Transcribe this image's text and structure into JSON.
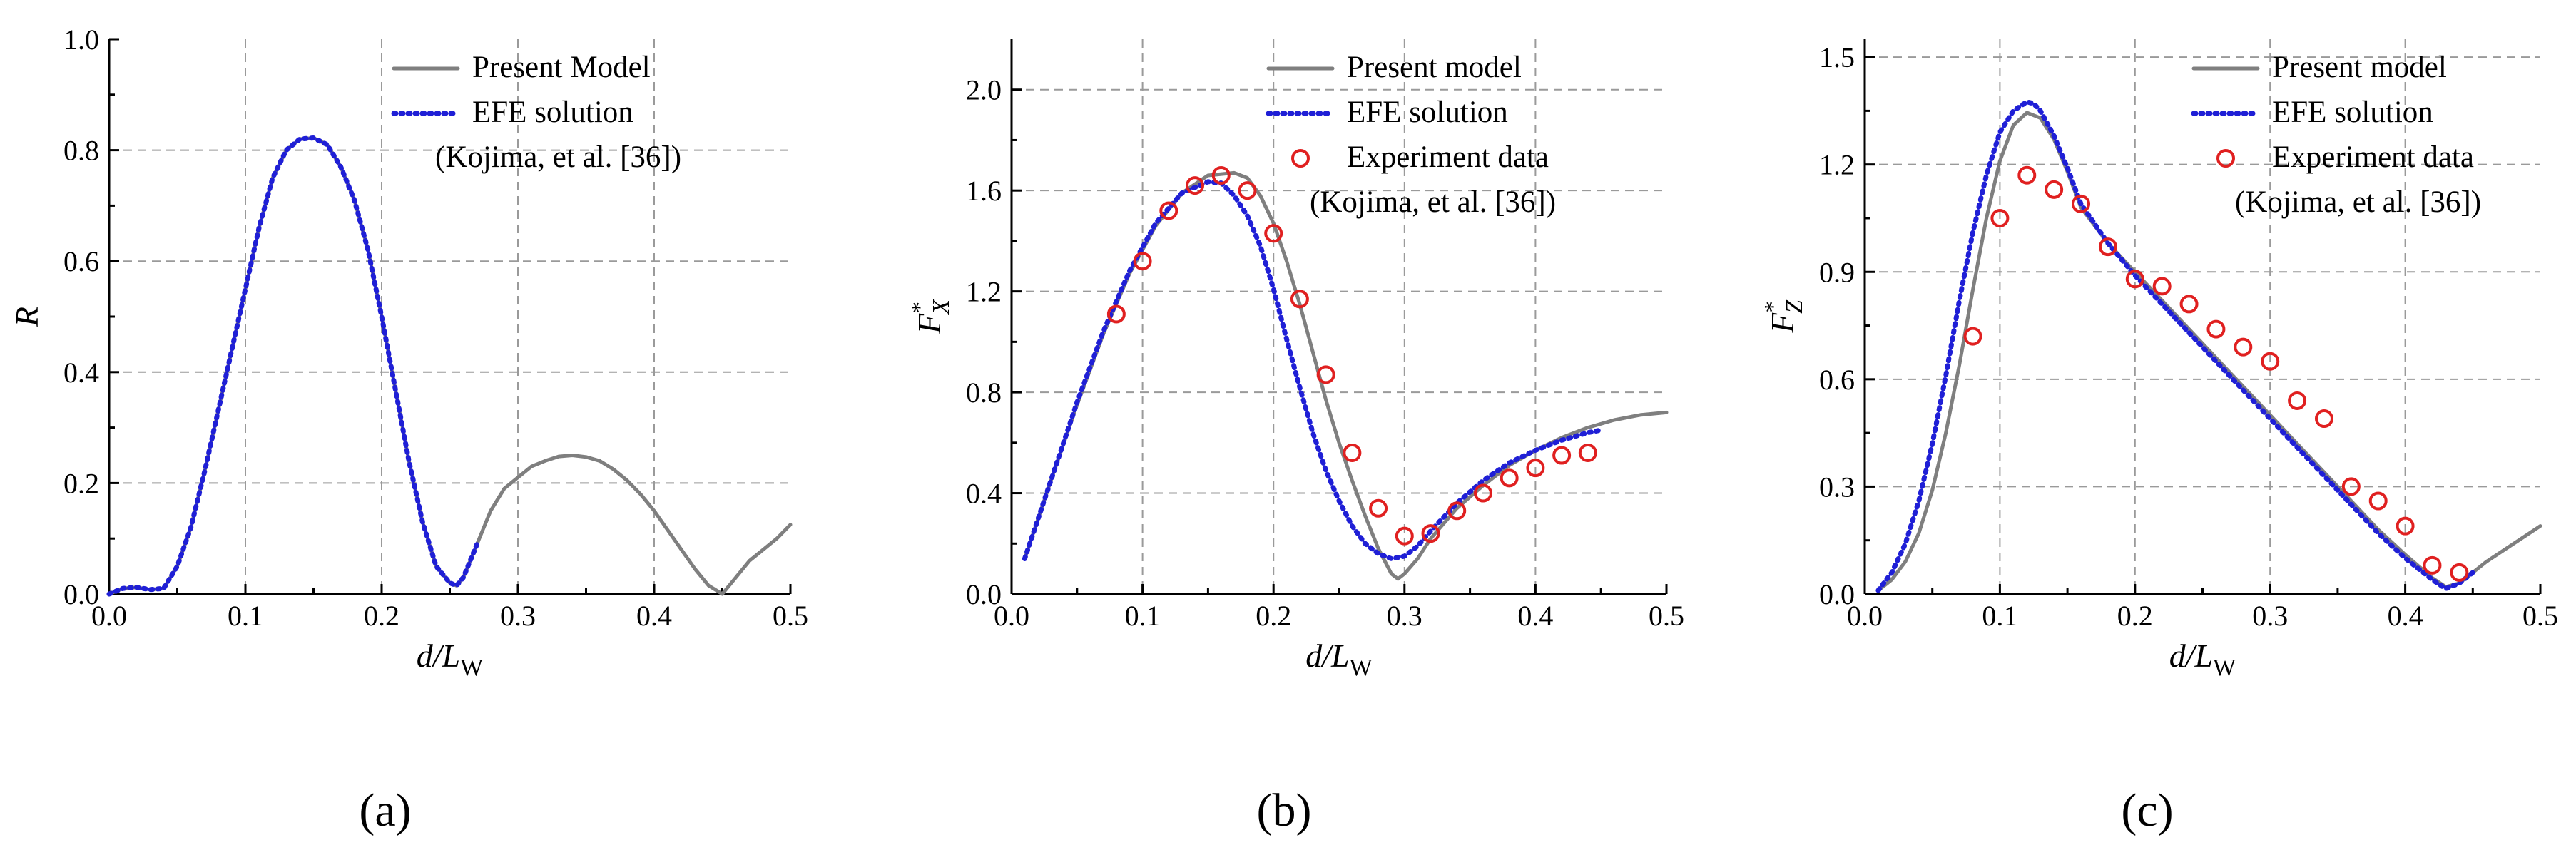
{
  "chart_data": [
    {
      "id": "a",
      "type": "line",
      "panel_label": "(a)",
      "xlabel": {
        "main": "d/L",
        "sub": "W"
      },
      "ylabel": {
        "main": "R",
        "sup": "",
        "sub": ""
      },
      "xlim": [
        0.0,
        0.5
      ],
      "ylim": [
        0.0,
        1.0
      ],
      "xticks": [
        0.0,
        0.1,
        0.2,
        0.3,
        0.4,
        0.5
      ],
      "yticks": [
        0.0,
        0.2,
        0.4,
        0.6,
        0.8,
        1.0
      ],
      "xtick_labels": [
        "0.0",
        "0.1",
        "0.2",
        "0.3",
        "0.4",
        "0.5"
      ],
      "ytick_labels": [
        "0.0",
        "0.2",
        "0.4",
        "0.6",
        "0.8",
        "1.0"
      ],
      "grid": true,
      "legend_position": "top-right",
      "legend": [
        {
          "label": "Present Model",
          "style": "solid",
          "color": "#7f7f7f"
        },
        {
          "label": "EFE solution",
          "style": "dotted",
          "color": "#1f1fd6"
        },
        {
          "label": "(Kojima, et al. [36])",
          "style": "none"
        }
      ],
      "series": [
        {
          "name": "Present Model",
          "style": "solid",
          "color": "#7f7f7f",
          "x": [
            0.0,
            0.01,
            0.02,
            0.03,
            0.04,
            0.05,
            0.06,
            0.07,
            0.08,
            0.09,
            0.1,
            0.11,
            0.12,
            0.13,
            0.14,
            0.15,
            0.16,
            0.17,
            0.18,
            0.19,
            0.2,
            0.21,
            0.22,
            0.23,
            0.24,
            0.25,
            0.255,
            0.26,
            0.27,
            0.28,
            0.29,
            0.3,
            0.31,
            0.32,
            0.33,
            0.34,
            0.35,
            0.36,
            0.37,
            0.38,
            0.39,
            0.4,
            0.41,
            0.42,
            0.43,
            0.44,
            0.45,
            0.46,
            0.47,
            0.48,
            0.49,
            0.5
          ],
          "y": [
            0.0,
            0.01,
            0.012,
            0.008,
            0.01,
            0.05,
            0.12,
            0.22,
            0.33,
            0.44,
            0.55,
            0.66,
            0.75,
            0.8,
            0.82,
            0.822,
            0.81,
            0.77,
            0.71,
            0.62,
            0.5,
            0.37,
            0.24,
            0.13,
            0.05,
            0.02,
            0.015,
            0.03,
            0.09,
            0.15,
            0.19,
            0.21,
            0.23,
            0.24,
            0.248,
            0.25,
            0.247,
            0.24,
            0.225,
            0.205,
            0.18,
            0.15,
            0.115,
            0.08,
            0.045,
            0.015,
            0.0,
            0.03,
            0.06,
            0.08,
            0.1,
            0.125
          ]
        },
        {
          "name": "EFE solution",
          "style": "dotted",
          "color": "#1f1fd6",
          "x": [
            0.0,
            0.01,
            0.02,
            0.03,
            0.04,
            0.05,
            0.06,
            0.07,
            0.08,
            0.09,
            0.1,
            0.11,
            0.12,
            0.13,
            0.14,
            0.15,
            0.16,
            0.17,
            0.18,
            0.19,
            0.2,
            0.21,
            0.22,
            0.23,
            0.24,
            0.25,
            0.255,
            0.26,
            0.27
          ],
          "y": [
            0.0,
            0.01,
            0.012,
            0.008,
            0.01,
            0.05,
            0.12,
            0.22,
            0.33,
            0.44,
            0.55,
            0.66,
            0.75,
            0.8,
            0.82,
            0.822,
            0.81,
            0.77,
            0.71,
            0.62,
            0.5,
            0.37,
            0.24,
            0.13,
            0.05,
            0.02,
            0.015,
            0.03,
            0.09
          ]
        }
      ]
    },
    {
      "id": "b",
      "type": "line",
      "panel_label": "(b)",
      "xlabel": {
        "main": "d/L",
        "sub": "W"
      },
      "ylabel": {
        "main": "F",
        "sup": "*",
        "sub": "X"
      },
      "xlim": [
        0.0,
        0.5
      ],
      "ylim": [
        0.0,
        2.2
      ],
      "xticks": [
        0.0,
        0.1,
        0.2,
        0.3,
        0.4,
        0.5
      ],
      "yticks": [
        0.0,
        0.4,
        0.8,
        1.2,
        1.6,
        2.0
      ],
      "xtick_labels": [
        "0.0",
        "0.1",
        "0.2",
        "0.3",
        "0.4",
        "0.5"
      ],
      "ytick_labels": [
        "0.0",
        "0.4",
        "0.8",
        "1.2",
        "1.6",
        "2.0"
      ],
      "grid": true,
      "legend_position": "top-right",
      "legend": [
        {
          "label": "Present model",
          "style": "solid",
          "color": "#7f7f7f"
        },
        {
          "label": "EFE solution",
          "style": "dotted",
          "color": "#1f1fd6"
        },
        {
          "label": "Experiment data",
          "style": "marker",
          "color": "#e02020"
        },
        {
          "label": "(Kojima, et al. [36])",
          "style": "none"
        }
      ],
      "series": [
        {
          "name": "Present model",
          "style": "solid",
          "color": "#7f7f7f",
          "x": [
            0.01,
            0.03,
            0.05,
            0.07,
            0.09,
            0.11,
            0.13,
            0.15,
            0.17,
            0.18,
            0.19,
            0.2,
            0.21,
            0.22,
            0.23,
            0.24,
            0.25,
            0.26,
            0.27,
            0.28,
            0.29,
            0.295,
            0.3,
            0.31,
            0.32,
            0.34,
            0.36,
            0.38,
            0.4,
            0.42,
            0.44,
            0.46,
            0.48,
            0.5
          ],
          "y": [
            0.14,
            0.45,
            0.75,
            1.03,
            1.27,
            1.46,
            1.59,
            1.66,
            1.67,
            1.65,
            1.58,
            1.47,
            1.32,
            1.15,
            0.96,
            0.77,
            0.6,
            0.45,
            0.31,
            0.18,
            0.08,
            0.06,
            0.08,
            0.14,
            0.22,
            0.34,
            0.43,
            0.51,
            0.57,
            0.62,
            0.66,
            0.69,
            0.71,
            0.72
          ]
        },
        {
          "name": "EFE solution",
          "style": "dotted",
          "color": "#1f1fd6",
          "x": [
            0.01,
            0.03,
            0.05,
            0.07,
            0.09,
            0.11,
            0.13,
            0.15,
            0.16,
            0.17,
            0.18,
            0.19,
            0.2,
            0.21,
            0.22,
            0.23,
            0.24,
            0.25,
            0.26,
            0.27,
            0.28,
            0.29,
            0.3,
            0.31,
            0.32,
            0.34,
            0.36,
            0.38,
            0.4,
            0.42,
            0.44,
            0.45
          ],
          "y": [
            0.14,
            0.45,
            0.76,
            1.04,
            1.28,
            1.47,
            1.59,
            1.635,
            1.63,
            1.58,
            1.5,
            1.38,
            1.21,
            1.01,
            0.82,
            0.64,
            0.49,
            0.37,
            0.27,
            0.2,
            0.16,
            0.14,
            0.15,
            0.19,
            0.25,
            0.36,
            0.45,
            0.52,
            0.57,
            0.61,
            0.64,
            0.65
          ]
        },
        {
          "name": "Experiment data",
          "style": "marker",
          "color": "#e02020",
          "x": [
            0.08,
            0.1,
            0.12,
            0.14,
            0.16,
            0.18,
            0.2,
            0.22,
            0.24,
            0.26,
            0.28,
            0.3,
            0.32,
            0.34,
            0.36,
            0.38,
            0.4,
            0.42,
            0.44
          ],
          "y": [
            1.11,
            1.32,
            1.52,
            1.62,
            1.66,
            1.6,
            1.43,
            1.17,
            0.87,
            0.56,
            0.34,
            0.23,
            0.24,
            0.33,
            0.4,
            0.46,
            0.5,
            0.55,
            0.56
          ]
        }
      ]
    },
    {
      "id": "c",
      "type": "line",
      "panel_label": "(c)",
      "xlabel": {
        "main": "d/L",
        "sub": "W"
      },
      "ylabel": {
        "main": "F",
        "sup": "*",
        "sub": "Z"
      },
      "xlim": [
        0.0,
        0.5
      ],
      "ylim": [
        0.0,
        1.55
      ],
      "xticks": [
        0.0,
        0.1,
        0.2,
        0.3,
        0.4,
        0.5
      ],
      "yticks": [
        0.0,
        0.3,
        0.6,
        0.9,
        1.2,
        1.5
      ],
      "xtick_labels": [
        "0.0",
        "0.1",
        "0.2",
        "0.3",
        "0.4",
        "0.5"
      ],
      "ytick_labels": [
        "0.0",
        "0.3",
        "0.6",
        "0.9",
        "1.2",
        "1.5"
      ],
      "grid": true,
      "legend_position": "top-right",
      "legend": [
        {
          "label": "Present model",
          "style": "solid",
          "color": "#7f7f7f"
        },
        {
          "label": "EFE solution",
          "style": "dotted",
          "color": "#1f1fd6"
        },
        {
          "label": "Experiment data",
          "style": "marker",
          "color": "#e02020"
        },
        {
          "label": "(Kojima, et al. [36])",
          "style": "none"
        }
      ],
      "series": [
        {
          "name": "Present model",
          "style": "solid",
          "color": "#7f7f7f",
          "x": [
            0.01,
            0.02,
            0.03,
            0.04,
            0.05,
            0.06,
            0.07,
            0.08,
            0.09,
            0.1,
            0.11,
            0.12,
            0.13,
            0.14,
            0.15,
            0.16,
            0.18,
            0.2,
            0.22,
            0.24,
            0.26,
            0.28,
            0.3,
            0.32,
            0.34,
            0.36,
            0.38,
            0.4,
            0.42,
            0.43,
            0.44,
            0.45,
            0.46,
            0.48,
            0.5
          ],
          "y": [
            0.01,
            0.04,
            0.09,
            0.17,
            0.29,
            0.45,
            0.64,
            0.85,
            1.05,
            1.21,
            1.31,
            1.345,
            1.33,
            1.27,
            1.18,
            1.08,
            0.98,
            0.9,
            0.82,
            0.74,
            0.66,
            0.58,
            0.5,
            0.42,
            0.34,
            0.26,
            0.18,
            0.11,
            0.045,
            0.02,
            0.03,
            0.06,
            0.09,
            0.14,
            0.19
          ]
        },
        {
          "name": "EFE solution",
          "style": "dotted",
          "color": "#1f1fd6",
          "x": [
            0.01,
            0.02,
            0.03,
            0.04,
            0.05,
            0.06,
            0.07,
            0.08,
            0.09,
            0.1,
            0.11,
            0.12,
            0.125,
            0.13,
            0.14,
            0.15,
            0.16,
            0.18,
            0.2,
            0.22,
            0.24,
            0.26,
            0.28,
            0.3,
            0.32,
            0.34,
            0.36,
            0.38,
            0.4,
            0.42,
            0.43,
            0.44,
            0.45
          ],
          "y": [
            0.01,
            0.06,
            0.14,
            0.26,
            0.42,
            0.61,
            0.82,
            1.01,
            1.17,
            1.29,
            1.35,
            1.375,
            1.37,
            1.35,
            1.28,
            1.19,
            1.09,
            0.98,
            0.89,
            0.81,
            0.73,
            0.65,
            0.57,
            0.49,
            0.41,
            0.33,
            0.25,
            0.17,
            0.1,
            0.04,
            0.015,
            0.03,
            0.06
          ]
        },
        {
          "name": "Experiment data",
          "style": "marker",
          "color": "#e02020",
          "x": [
            0.08,
            0.1,
            0.12,
            0.14,
            0.16,
            0.18,
            0.2,
            0.22,
            0.24,
            0.26,
            0.28,
            0.3,
            0.32,
            0.34,
            0.36,
            0.38,
            0.4,
            0.42,
            0.44
          ],
          "y": [
            0.72,
            1.05,
            1.17,
            1.13,
            1.09,
            0.97,
            0.88,
            0.86,
            0.81,
            0.74,
            0.69,
            0.65,
            0.54,
            0.49,
            0.3,
            0.26,
            0.19,
            0.08,
            0.06
          ]
        }
      ]
    }
  ]
}
